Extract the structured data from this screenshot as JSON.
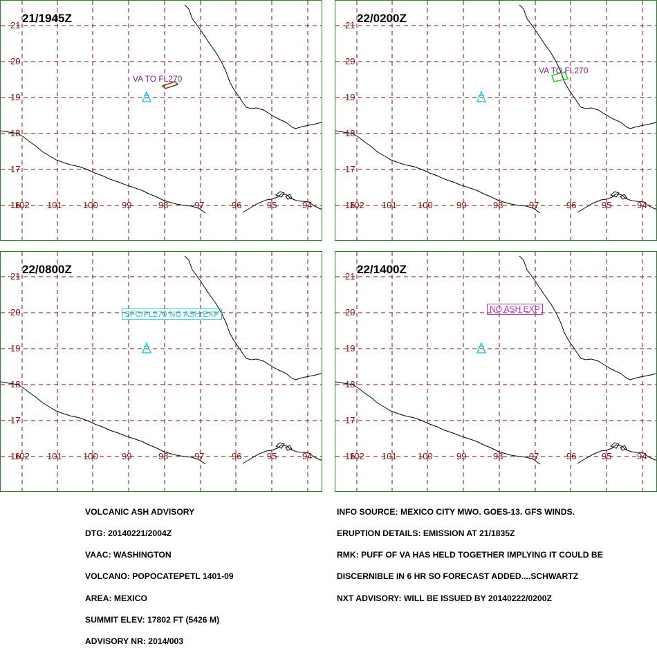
{
  "panels": [
    {
      "time": "21/1945Z",
      "label": "VA TO FL270",
      "label_color": "#7d1f7d",
      "shape_color": "#7a3a10"
    },
    {
      "time": "22/0200Z",
      "label": "VA TO FL270",
      "label_color": "#7d1f7d",
      "shape_color": "#22cc22"
    },
    {
      "time": "22/0800Z",
      "label": "SFC/FL270 NO ASH EXP",
      "label_color": "#22c8d8",
      "shape_color": "#22c8d8"
    },
    {
      "time": "22/1400Z",
      "label": "NO ASH EXP",
      "label_color": "#b030b0",
      "shape_color": "#b030b0"
    }
  ],
  "lat_labels": [
    "21",
    "20",
    "19",
    "18",
    "17",
    "16"
  ],
  "lon_labels": [
    "102",
    "101",
    "100",
    "99",
    "98",
    "97",
    "96",
    "95",
    "94"
  ],
  "volcano_color": "#22c8d8",
  "grid_color": "#7a1010",
  "coast_color": "#000000",
  "advisory_left": [
    "VOLCANIC ASH ADVISORY",
    "DTG: 20140221/2004Z",
    "VAAC: WASHINGTON",
    "VOLCANO: POPOCATEPETL 1401-09",
    "AREA: MEXICO",
    "SUMMIT ELEV: 17802 FT (5426 M)",
    "ADVISORY NR: 2014/003"
  ],
  "advisory_right": [
    "INFO SOURCE: MEXICO CITY MWO. GOES-13. GFS WINDS.",
    "ERUPTION DETAILS: EMISSION AT 21/1835Z",
    "RMK: PUFF OF VA HAS HELD TOGETHER IMPLYING IT COULD BE",
    "DISCERNIBLE IN 6 HR SO FORECAST ADDED....SCHWARTZ",
    "NXT ADVISORY: WILL BE ISSUED BY 20140222/0200Z"
  ]
}
